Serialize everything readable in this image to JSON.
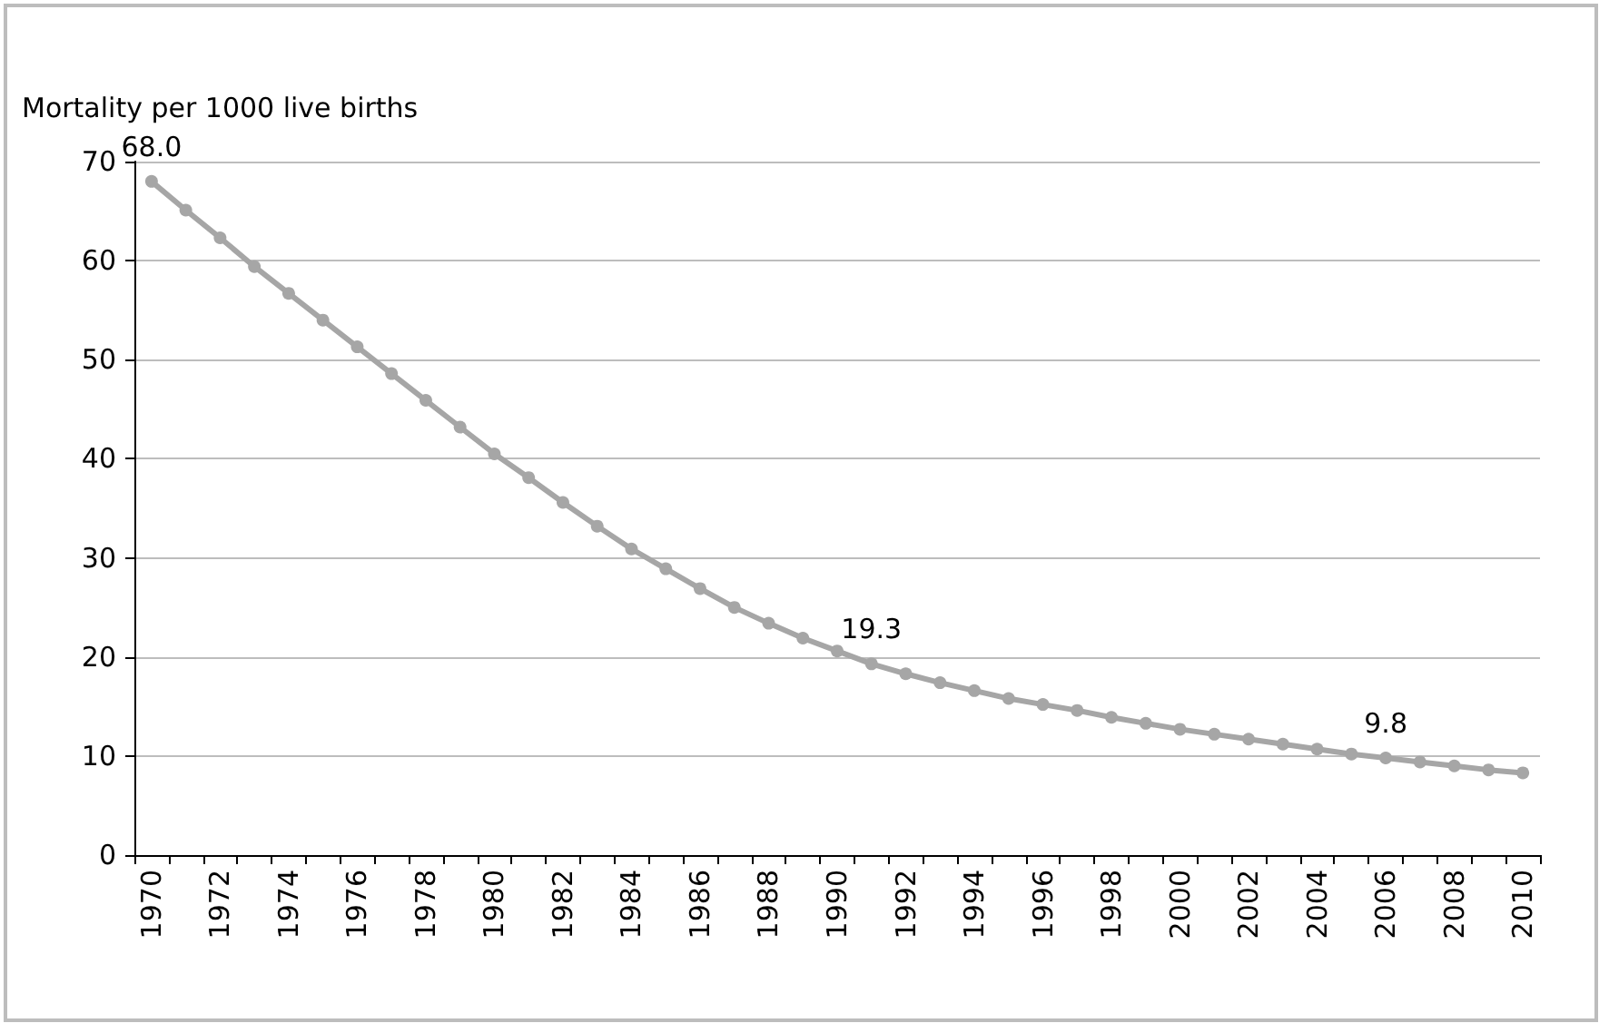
{
  "chart_data": {
    "type": "line",
    "ylabel": "Mortality per 1000 live births",
    "categories": [
      "1970",
      null,
      "1972",
      null,
      "1974",
      null,
      "1976",
      null,
      "1978",
      null,
      "1980",
      null,
      "1982",
      null,
      "1984",
      null,
      "1986",
      null,
      "1988",
      null,
      "1990",
      null,
      "1992",
      null,
      "1994",
      null,
      "1996",
      null,
      "1998",
      null,
      "2000",
      null,
      "2002",
      null,
      "2004",
      null,
      "2006",
      null,
      "2008",
      null,
      "2010"
    ],
    "series": [
      {
        "color": "#a6a6a6",
        "values": [
          68.0,
          65.1,
          62.3,
          59.4,
          56.7,
          54.0,
          51.3,
          48.6,
          45.9,
          43.2,
          40.5,
          38.1,
          35.6,
          33.2,
          30.9,
          28.9,
          26.9,
          25.0,
          23.4,
          21.9,
          20.6,
          19.3,
          18.3,
          17.4,
          16.6,
          15.8,
          15.2,
          14.6,
          13.9,
          13.3,
          12.7,
          12.2,
          11.7,
          11.2,
          10.7,
          10.2,
          9.8,
          9.4,
          9.0,
          8.6,
          8.3
        ],
        "value_labels": [
          "68.0",
          null,
          null,
          null,
          null,
          null,
          null,
          null,
          null,
          null,
          null,
          null,
          null,
          null,
          null,
          null,
          null,
          null,
          null,
          null,
          null,
          "19.3",
          null,
          null,
          null,
          null,
          null,
          null,
          null,
          null,
          null,
          null,
          null,
          null,
          null,
          null,
          "9.8",
          null,
          null,
          null,
          null
        ]
      }
    ],
    "ylim": [
      0,
      70
    ],
    "yticks": [
      0,
      10,
      20,
      30,
      40,
      50,
      60,
      70
    ],
    "grid": "y",
    "marker": "circle",
    "line_style": "solid"
  }
}
